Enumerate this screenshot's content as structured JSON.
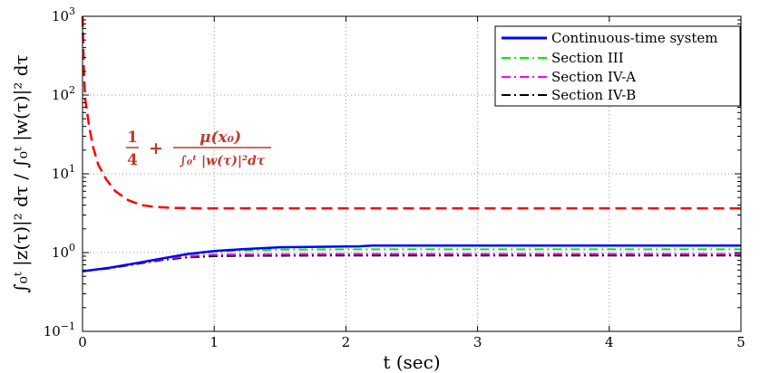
{
  "chart_data": {
    "type": "line",
    "xlabel": "t (sec)",
    "ylabel": "∫₀ᵗ |z(τ)|² dτ / ∫₀ᵗ |w(τ)|² dτ",
    "xlim": [
      0,
      5
    ],
    "ylim": [
      0.1,
      1000
    ],
    "yscale": "log",
    "grid": true,
    "legend_position": "top-right",
    "x_ticks": [
      "0",
      "1",
      "2",
      "3",
      "4",
      "5"
    ],
    "y_ticks": [
      {
        "base": "10",
        "exp": "−1"
      },
      {
        "base": "10",
        "exp": "0"
      },
      {
        "base": "10",
        "exp": "1"
      },
      {
        "base": "10",
        "exp": "2"
      },
      {
        "base": "10",
        "exp": "3"
      }
    ],
    "series": [
      {
        "name": "Continuous-time system",
        "color": "#0000ff",
        "dash": "solid",
        "x": [
          0,
          0.2,
          0.4,
          0.6,
          0.8,
          1.0,
          1.2,
          1.5,
          2.1,
          2.2,
          3,
          4,
          5
        ],
        "y": [
          0.58,
          0.64,
          0.73,
          0.84,
          0.96,
          1.05,
          1.1,
          1.17,
          1.2,
          1.23,
          1.23,
          1.23,
          1.23
        ]
      },
      {
        "name": "Section III",
        "color": "#00ee00",
        "dash": "dash-dot",
        "x": [
          0,
          0.2,
          0.4,
          0.6,
          0.8,
          1.0,
          1.2,
          1.5,
          2,
          3,
          4,
          5
        ],
        "y": [
          0.58,
          0.64,
          0.73,
          0.84,
          0.95,
          1.02,
          1.06,
          1.09,
          1.1,
          1.1,
          1.1,
          1.1
        ]
      },
      {
        "name": "Section IV-A",
        "color": "#ff00ff",
        "dash": "dash-dot",
        "x": [
          0,
          0.2,
          0.4,
          0.6,
          0.8,
          1.0,
          1.2,
          2,
          3,
          4,
          5
        ],
        "y": [
          0.58,
          0.64,
          0.72,
          0.82,
          0.9,
          0.94,
          0.95,
          0.96,
          0.96,
          0.96,
          0.96
        ]
      },
      {
        "name": "Section IV-B",
        "color": "#000000",
        "dash": "dash-dot",
        "x": [
          0,
          0.2,
          0.4,
          0.6,
          0.8,
          1.0,
          1.2,
          2,
          3,
          4,
          5
        ],
        "y": [
          0.58,
          0.63,
          0.71,
          0.8,
          0.87,
          0.9,
          0.91,
          0.92,
          0.92,
          0.92,
          0.92
        ]
      },
      {
        "color": "#ff0000",
        "dash": "dashed",
        "x": [
          0,
          0.01,
          0.02,
          0.05,
          0.08,
          0.12,
          0.18,
          0.25,
          0.35,
          0.45,
          0.55,
          0.7,
          0.9,
          1.2,
          2,
          3,
          4,
          5
        ],
        "y": [
          1000,
          200,
          90,
          40,
          22,
          13,
          8.5,
          6.0,
          4.6,
          4.0,
          3.8,
          3.7,
          3.65,
          3.65,
          3.65,
          3.65,
          3.65,
          3.65
        ]
      }
    ],
    "annotation": {
      "frac1_num": "1",
      "frac1_den": "4",
      "plus": "+",
      "frac2_num": "μ(x₀)",
      "frac2_den": "∫₀ᵗ |w(τ)|²dτ",
      "color": "#c0392b"
    }
  }
}
